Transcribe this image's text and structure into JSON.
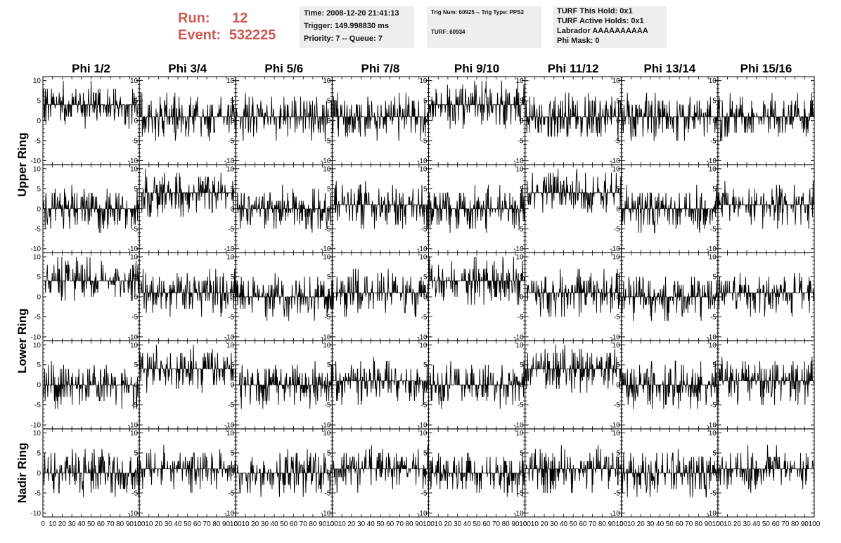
{
  "header": {
    "run_label": "Run:",
    "run_value": "12",
    "event_label": "Event:",
    "event_value": "532225",
    "time": "Time: 2008-12-20 21:41:13",
    "trigger": "Trigger: 149.998830 ms",
    "priority": "Priority: 7 -- Queue: 7",
    "trig_num": "Trig Num: 60925 -- Trig Type: PPS2",
    "turf": "TURF: 60934",
    "turf_hold": "TURF This Hold: 0x1",
    "turf_active": "TURF Active Holds: 0x1",
    "labrador": "Labrador AAAAAAAAAA",
    "phi_mask": "Phi Mask: 0"
  },
  "chart_data": {
    "type": "line",
    "columns": [
      "Phi 1/2",
      "Phi 3/4",
      "Phi 5/6",
      "Phi 7/8",
      "Phi 9/10",
      "Phi 11/12",
      "Phi 13/14",
      "Phi 15/16"
    ],
    "ring_labels": [
      "Upper Ring",
      "Lower Ring",
      "Nadir Ring"
    ],
    "xlim": [
      0,
      100
    ],
    "ylim": [
      -11,
      11
    ],
    "y_ticks": [
      -10,
      -5,
      0,
      5,
      10
    ],
    "x_ticks": [
      0,
      10,
      20,
      30,
      40,
      50,
      60,
      70,
      80,
      90,
      100
    ],
    "x_tick_labels": [
      "0",
      "10",
      "20",
      "30",
      "40",
      "50",
      "60",
      "70",
      "80",
      "90",
      "100"
    ],
    "y_tick_labels": [
      "-10",
      "-5",
      "0",
      "5",
      "10"
    ],
    "panel_levels": [
      [
        4,
        1,
        1,
        1,
        4,
        1,
        1,
        1
      ],
      [
        0,
        4,
        0,
        1,
        0,
        4,
        0,
        1
      ],
      [
        4,
        1,
        0,
        1,
        4,
        1,
        0,
        1
      ],
      [
        0,
        4,
        0,
        1,
        0,
        4,
        0,
        1
      ],
      [
        0,
        1,
        0,
        1,
        0,
        1,
        0,
        1
      ]
    ],
    "series_description": "noisy step-like waveform per panel around given baseline level"
  }
}
